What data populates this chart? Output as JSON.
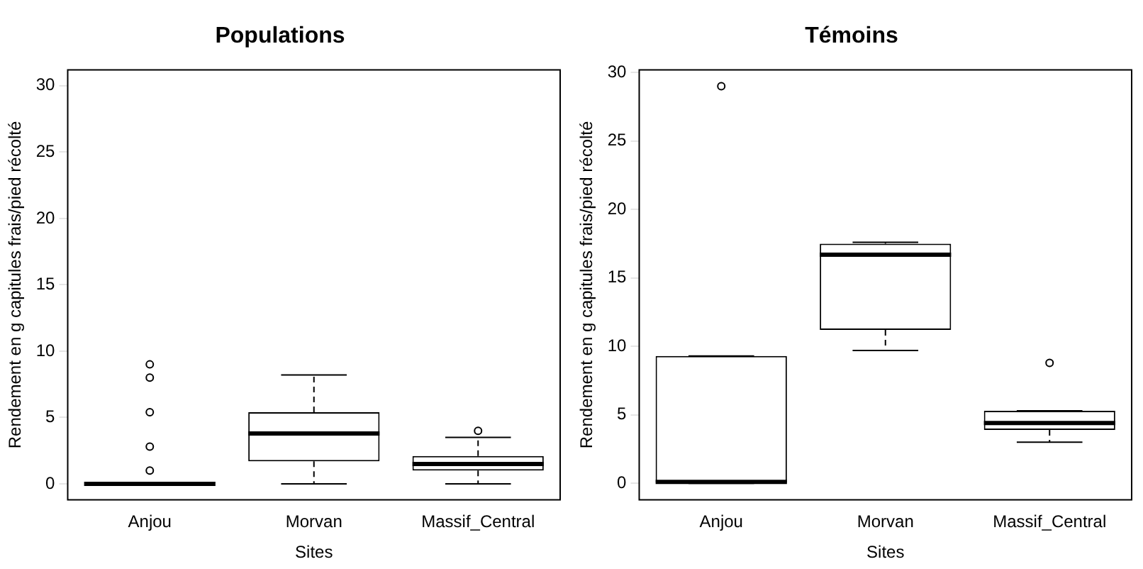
{
  "chart_data": [
    {
      "type": "box",
      "title": "Populations",
      "xlabel": "Sites",
      "ylabel": "Rendement en g capitules frais/pied récolté",
      "categories": [
        "Anjou",
        "Morvan",
        "Massif_Central"
      ],
      "boxes": [
        {
          "low": 0,
          "q1": 0,
          "median": 0,
          "q3": 0,
          "high": 0,
          "outliers": [
            1,
            2.8,
            5.4,
            8,
            9
          ]
        },
        {
          "low": 0,
          "q1": 1.7,
          "median": 3.8,
          "q3": 5.4,
          "high": 8.2
        },
        {
          "low": 0,
          "q1": 1.0,
          "median": 1.5,
          "q3": 2.1,
          "high": 3.5,
          "outliers": [
            4
          ]
        }
      ],
      "ylim": [
        -1.2,
        31.2
      ],
      "yticks": [
        0,
        5,
        10,
        15,
        20,
        25,
        30
      ],
      "grid": false
    },
    {
      "type": "box",
      "title": "Témoins",
      "xlabel": "Sites",
      "ylabel": "Rendement en g capitules frais/pied récolté",
      "categories": [
        "Anjou",
        "Morvan",
        "Massif_Central"
      ],
      "boxes": [
        {
          "low": 0,
          "q1": 0,
          "median": 0.1,
          "q3": 9.3,
          "high": 9.3,
          "outliers": [
            29
          ]
        },
        {
          "low": 9.7,
          "q1": 11.2,
          "median": 16.7,
          "q3": 17.5,
          "high": 17.6
        },
        {
          "low": 3.0,
          "q1": 3.9,
          "median": 4.4,
          "q3": 5.3,
          "high": 5.3,
          "outliers": [
            8.8
          ]
        }
      ],
      "ylim": [
        -1.2,
        30.2
      ],
      "yticks": [
        0,
        5,
        10,
        15,
        20,
        25,
        30
      ],
      "grid": false
    }
  ]
}
